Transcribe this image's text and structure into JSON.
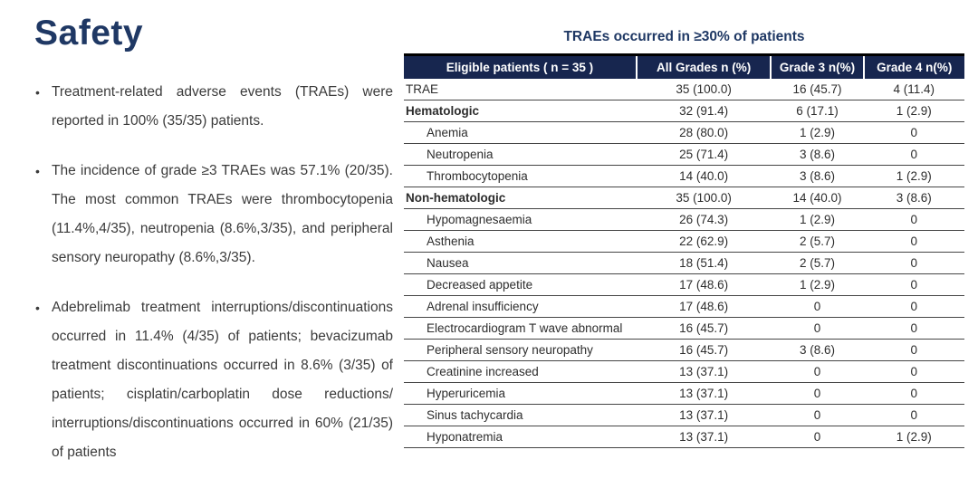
{
  "colors": {
    "navy": "#1F3864",
    "header_bg": "#17264F",
    "body_text": "#3b3b3b",
    "row_line": "#454545"
  },
  "slide": {
    "title": "Safety",
    "bullets": [
      "Treatment-related adverse events (TRAEs) were reported in 100% (35/35) patients.",
      "The incidence of grade ≥3 TRAEs was 57.1% (20/35). The most common TRAEs were thrombocytopenia (11.4%,4/35), neutropenia (8.6%,3/35), and peripheral sensory neuropathy (8.6%,3/35).",
      "Adebrelimab treatment interruptions/discontinuations occurred in 11.4% (4/35) of patients; bevacizumab treatment discontinuations occurred in 8.6% (3/35) of patients; cisplatin/carboplatin dose reductions/ interruptions/discontinuations occurred in 60% (21/35) of patients"
    ]
  },
  "table": {
    "title": "TRAEs occurred in ≥30% of patients",
    "columns": [
      "Eligible patients ( n = 35 )",
      "All Grades  n (%)",
      "Grade 3  n(%)",
      "Grade 4  n(%)"
    ],
    "rows": [
      {
        "label": "TRAE",
        "type": "plain",
        "all_grades": "35 (100.0)",
        "grade3": "16 (45.7)",
        "grade4": "4 (11.4)"
      },
      {
        "label": "Hematologic",
        "type": "group",
        "all_grades": "32 (91.4)",
        "grade3": "6 (17.1)",
        "grade4": "1 (2.9)"
      },
      {
        "label": "Anemia",
        "type": "sub",
        "all_grades": "28 (80.0)",
        "grade3": "1 (2.9)",
        "grade4": "0"
      },
      {
        "label": "Neutropenia",
        "type": "sub",
        "all_grades": "25 (71.4)",
        "grade3": "3 (8.6)",
        "grade4": "0"
      },
      {
        "label": "Thrombocytopenia",
        "type": "sub",
        "all_grades": "14 (40.0)",
        "grade3": "3 (8.6)",
        "grade4": "1 (2.9)"
      },
      {
        "label": "Non-hematologic",
        "type": "group",
        "all_grades": "35 (100.0)",
        "grade3": "14 (40.0)",
        "grade4": "3 (8.6)"
      },
      {
        "label": "Hypomagnesaemia",
        "type": "sub",
        "all_grades": "26 (74.3)",
        "grade3": "1 (2.9)",
        "grade4": "0"
      },
      {
        "label": "Asthenia",
        "type": "sub",
        "all_grades": "22 (62.9)",
        "grade3": "2 (5.7)",
        "grade4": "0"
      },
      {
        "label": "Nausea",
        "type": "sub",
        "all_grades": "18 (51.4)",
        "grade3": "2 (5.7)",
        "grade4": "0"
      },
      {
        "label": "Decreased appetite",
        "type": "sub",
        "all_grades": "17 (48.6)",
        "grade3": "1 (2.9)",
        "grade4": "0"
      },
      {
        "label": "Adrenal insufficiency",
        "type": "sub",
        "all_grades": "17 (48.6)",
        "grade3": "0",
        "grade4": "0"
      },
      {
        "label": "Electrocardiogram T wave abnormal",
        "type": "sub",
        "all_grades": "16 (45.7)",
        "grade3": "0",
        "grade4": "0"
      },
      {
        "label": "Peripheral sensory neuropathy",
        "type": "sub",
        "all_grades": "16 (45.7)",
        "grade3": "3 (8.6)",
        "grade4": "0"
      },
      {
        "label": "Creatinine increased",
        "type": "sub",
        "all_grades": "13 (37.1)",
        "grade3": "0",
        "grade4": "0"
      },
      {
        "label": "Hyperuricemia",
        "type": "sub",
        "all_grades": "13 (37.1)",
        "grade3": "0",
        "grade4": "0"
      },
      {
        "label": "Sinus tachycardia",
        "type": "sub",
        "all_grades": "13 (37.1)",
        "grade3": "0",
        "grade4": "0"
      },
      {
        "label": "Hyponatremia",
        "type": "sub",
        "all_grades": "13 (37.1)",
        "grade3": "0",
        "grade4": "1 (2.9)"
      }
    ]
  }
}
